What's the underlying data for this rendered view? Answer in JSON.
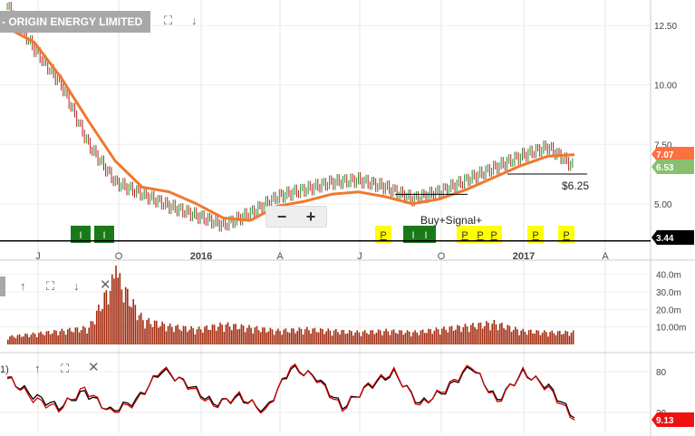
{
  "title": "- ORIGIN ENERGY LIMITED",
  "icons": {
    "fullscreen": "expand-icon",
    "collapse": "arrow-down-icon",
    "up": "arrow-up-icon",
    "down": "arrow-down-icon",
    "close": "close-icon",
    "zoom_out": "−",
    "zoom_in": "+"
  },
  "price_tags": {
    "current": "7.07",
    "previous": "6.53",
    "support": "3.44"
  },
  "annotations": {
    "target": "$6.25",
    "signal": "Buy+Signal+"
  },
  "rsi_label": "1)",
  "rsi_value_tag": "9.13",
  "colors": {
    "price_up": "#2f8a2f",
    "price_down": "#b02020",
    "moving_average": "#f07830",
    "volume": "#a32c10",
    "stoch_k": "#cc0000",
    "stoch_d": "#000000",
    "buy_marker": "#1a7a1a",
    "p_marker": "#ffff00",
    "tag_current": "#ff7040",
    "tag_previous": "#88c070",
    "tag_support": "#000000",
    "tag_rsi": "#ee1111"
  },
  "chart_data": [
    {
      "type": "line",
      "title": "ORIGIN ENERGY LIMITED",
      "x_labels": [
        "J",
        "O",
        "2016",
        "A",
        "J",
        "O",
        "2017",
        "A"
      ],
      "y_ticks": [
        "12.50",
        "10.00",
        "7.50",
        "5.00"
      ],
      "ylim": [
        3.2,
        13.5
      ],
      "series": [
        {
          "name": "",
          "chart": "candlestick",
          "x": [
            "2015-06",
            "2015-07",
            "2015-08",
            "2015-09",
            "2015-10",
            "2015-11",
            "2015-12",
            "2016-01",
            "2016-02",
            "2016-03",
            "2016-04",
            "2016-05",
            "2016-06",
            "2016-07",
            "2016-08",
            "2016-09",
            "2016-10",
            "2016-11",
            "2016-12",
            "2017-01",
            "2017-02",
            "2017-03"
          ],
          "close": [
            13.3,
            11.5,
            10.0,
            7.5,
            5.9,
            5.4,
            4.9,
            4.5,
            4.1,
            4.6,
            5.3,
            5.6,
            5.9,
            6.0,
            5.7,
            5.2,
            5.5,
            6.0,
            6.5,
            7.0,
            7.4,
            6.53
          ]
        },
        {
          "name": "",
          "chart": "moving-average",
          "x": [
            "2015-06",
            "2015-07",
            "2015-08",
            "2015-09",
            "2015-10",
            "2015-11",
            "2015-12",
            "2016-01",
            "2016-02",
            "2016-03",
            "2016-04",
            "2016-05",
            "2016-06",
            "2016-07",
            "2016-08",
            "2016-09",
            "2016-10",
            "2016-11",
            "2016-12",
            "2017-01",
            "2017-02",
            "2017-03"
          ],
          "values": [
            12.4,
            11.8,
            10.3,
            8.5,
            6.8,
            5.7,
            5.5,
            5.0,
            4.4,
            4.3,
            4.9,
            5.1,
            5.4,
            5.5,
            5.3,
            5.0,
            5.2,
            5.6,
            6.1,
            6.6,
            7.0,
            7.07
          ]
        }
      ],
      "horizontal_lines": [
        6.25,
        3.44,
        5.4
      ],
      "markers": [
        {
          "label": "I",
          "type": "buy",
          "x": "2015-08"
        },
        {
          "label": "I",
          "type": "buy",
          "x": "2015-09"
        },
        {
          "label": "P",
          "type": "p",
          "x": "2016-07"
        },
        {
          "label": "I",
          "type": "buy",
          "x": "2016-08"
        },
        {
          "label": "I",
          "type": "buy",
          "x": "2016-08b"
        },
        {
          "label": "P",
          "type": "p",
          "x": "2016-10"
        },
        {
          "label": "P",
          "type": "p",
          "x": "2016-11"
        },
        {
          "label": "P",
          "type": "p",
          "x": "2016-11b"
        },
        {
          "label": "P",
          "type": "p",
          "x": "2017-01"
        },
        {
          "label": "P",
          "type": "p",
          "x": "2017-02"
        }
      ]
    },
    {
      "type": "bar",
      "y_ticks": [
        "40.0m",
        "30.0m",
        "20.0m",
        "10.00m"
      ],
      "ylim": [
        0,
        45
      ],
      "categories": [
        "2015-06",
        "2015-07",
        "2015-08",
        "2015-09",
        "2015-10",
        "2015-11",
        "2015-12",
        "2016-01",
        "2016-02",
        "2016-03",
        "2016-04",
        "2016-05",
        "2016-06",
        "2016-07",
        "2016-08",
        "2016-09",
        "2016-10",
        "2016-11",
        "2016-12",
        "2017-01",
        "2017-02",
        "2017-03"
      ],
      "values": [
        5,
        7,
        9,
        11,
        45,
        16,
        12,
        10,
        13,
        11,
        9,
        10,
        9,
        8,
        9,
        8,
        10,
        12,
        14,
        9,
        8,
        8
      ]
    },
    {
      "type": "line",
      "y_ticks": [
        "80",
        "20"
      ],
      "ylim": [
        0,
        100
      ],
      "series": [
        {
          "name": "",
          "values": [
            72,
            40,
            25,
            55,
            20,
            35,
            85,
            60,
            30,
            45,
            20,
            88,
            70,
            25,
            60,
            80,
            30,
            55,
            90,
            35,
            80,
            55,
            9
          ]
        },
        {
          "name": "",
          "values": [
            70,
            45,
            28,
            50,
            22,
            38,
            82,
            62,
            33,
            42,
            23,
            85,
            72,
            28,
            58,
            78,
            33,
            52,
            88,
            38,
            78,
            58,
            12
          ]
        }
      ]
    }
  ]
}
